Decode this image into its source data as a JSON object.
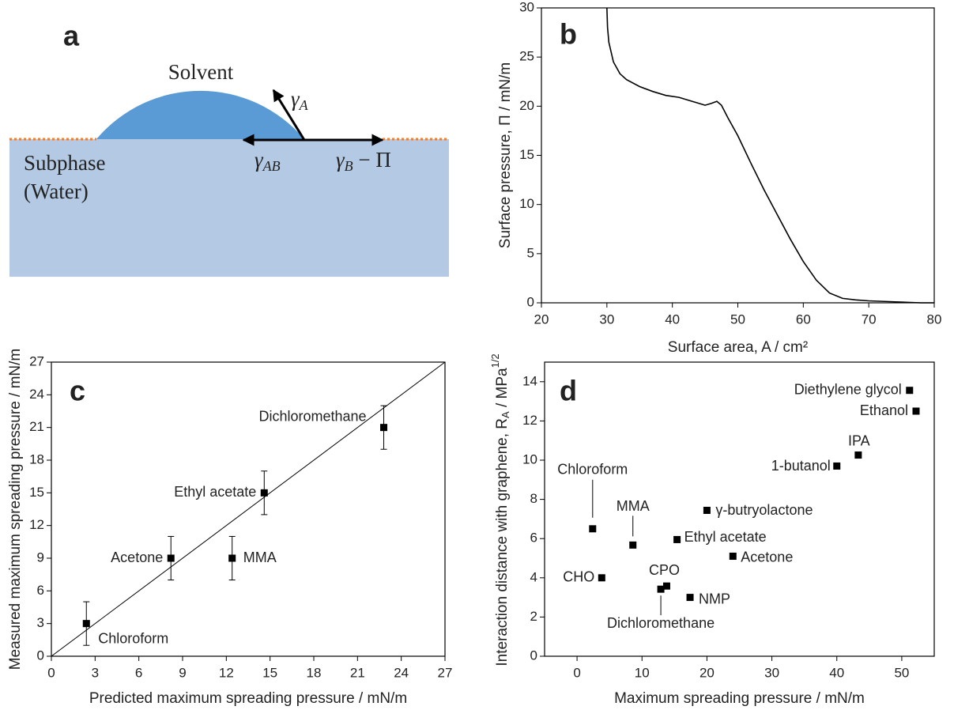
{
  "diagram": {
    "panel_label": "a",
    "solvent": "Solvent",
    "subphase": [
      "Subphase",
      "(Water)"
    ],
    "gamma_a": {
      "symbol": "γ",
      "subscript": "A"
    },
    "gamma_ab": {
      "symbol": "γ",
      "subscript": "AB"
    },
    "gamma_b": {
      "symbol": "γ",
      "subscript": "B",
      "suffix": " − Π"
    }
  },
  "chart_data": [
    {
      "type": "line",
      "panel_label": "b",
      "xlabel": "Surface area, A / cm²",
      "ylabel": "Surface pressure, Π / mN/m",
      "x": [
        30.0,
        30.1,
        30.3,
        31,
        32,
        33,
        35,
        37,
        39,
        41,
        43,
        45,
        46,
        46.8,
        47.5,
        48.5,
        50,
        52,
        54,
        56,
        58,
        60,
        62,
        64,
        66,
        68,
        70,
        72,
        74,
        76,
        78,
        80
      ],
      "series": [
        {
          "color": "#000000",
          "values": [
            30,
            28,
            26.5,
            24.5,
            23.3,
            22.7,
            22,
            21.5,
            21.1,
            20.9,
            20.5,
            20.1,
            20.3,
            20.5,
            20.1,
            18.8,
            17,
            14.2,
            11.5,
            9.0,
            6.5,
            4.2,
            2.3,
            1.0,
            0.45,
            0.3,
            0.2,
            0.15,
            0.1,
            0.05,
            0,
            0
          ]
        }
      ],
      "xlim": [
        20,
        80
      ],
      "xticks": [
        20,
        30,
        40,
        50,
        60,
        70,
        80
      ],
      "ylim": [
        0,
        30
      ],
      "yticks": [
        0,
        5,
        10,
        15,
        20,
        25,
        30
      ]
    },
    {
      "type": "scatter",
      "panel_label": "c",
      "xlabel": "Predicted maximum spreading pressure / mN/m",
      "ylabel": "Measured maximum spreading pressure / mN/m",
      "x": [
        2.4,
        8.2,
        12.4,
        14.6,
        22.8
      ],
      "values": [
        3,
        9,
        9,
        15,
        21
      ],
      "errors": [
        2,
        2,
        2,
        2,
        2
      ],
      "point_labels": [
        "Chloroform",
        "Acetone",
        "MMA",
        "Ethyl acetate",
        "Dichloromethane"
      ],
      "color": "#000000",
      "identity_line": true,
      "xlim": [
        0,
        27
      ],
      "xticks": [
        0,
        3,
        6,
        9,
        12,
        15,
        18,
        21,
        24,
        27
      ],
      "ylim": [
        0,
        27
      ],
      "yticks": [
        0,
        3,
        6,
        9,
        12,
        15,
        18,
        21,
        24,
        27
      ]
    },
    {
      "type": "scatter",
      "panel_label": "d",
      "xlabel": "Maximum spreading pressure / mN/m",
      "ylabel": {
        "text": "Interaction distance with graphene, R",
        "subscript": "A",
        "suffix": " / MPa",
        "superscript": "1/2"
      },
      "x": [
        51.2,
        52.2,
        43.3,
        40.0,
        20.0,
        15.4,
        24.0,
        2.4,
        8.6,
        3.8,
        13.8,
        12.9,
        17.4
      ],
      "values": [
        13.56,
        12.5,
        10.26,
        9.7,
        7.44,
        5.95,
        5.1,
        6.5,
        5.67,
        4.0,
        3.58,
        3.42,
        3.0
      ],
      "point_labels": [
        "Diethylene glycol",
        "Ethanol",
        "IPA",
        "1-butanol",
        "γ-butryolactone",
        "Ethyl acetate",
        "Acetone",
        "Chloroform",
        "MMA",
        "CHO",
        "CPO",
        "Dichloromethane",
        "NMP"
      ],
      "color": "#000000",
      "identity_line": false,
      "xlim": [
        -5,
        55
      ],
      "xticks": [
        0,
        10,
        20,
        30,
        40,
        50
      ],
      "ylim": [
        0,
        15
      ],
      "yticks": [
        0,
        2,
        4,
        6,
        8,
        10,
        12,
        14
      ]
    }
  ]
}
